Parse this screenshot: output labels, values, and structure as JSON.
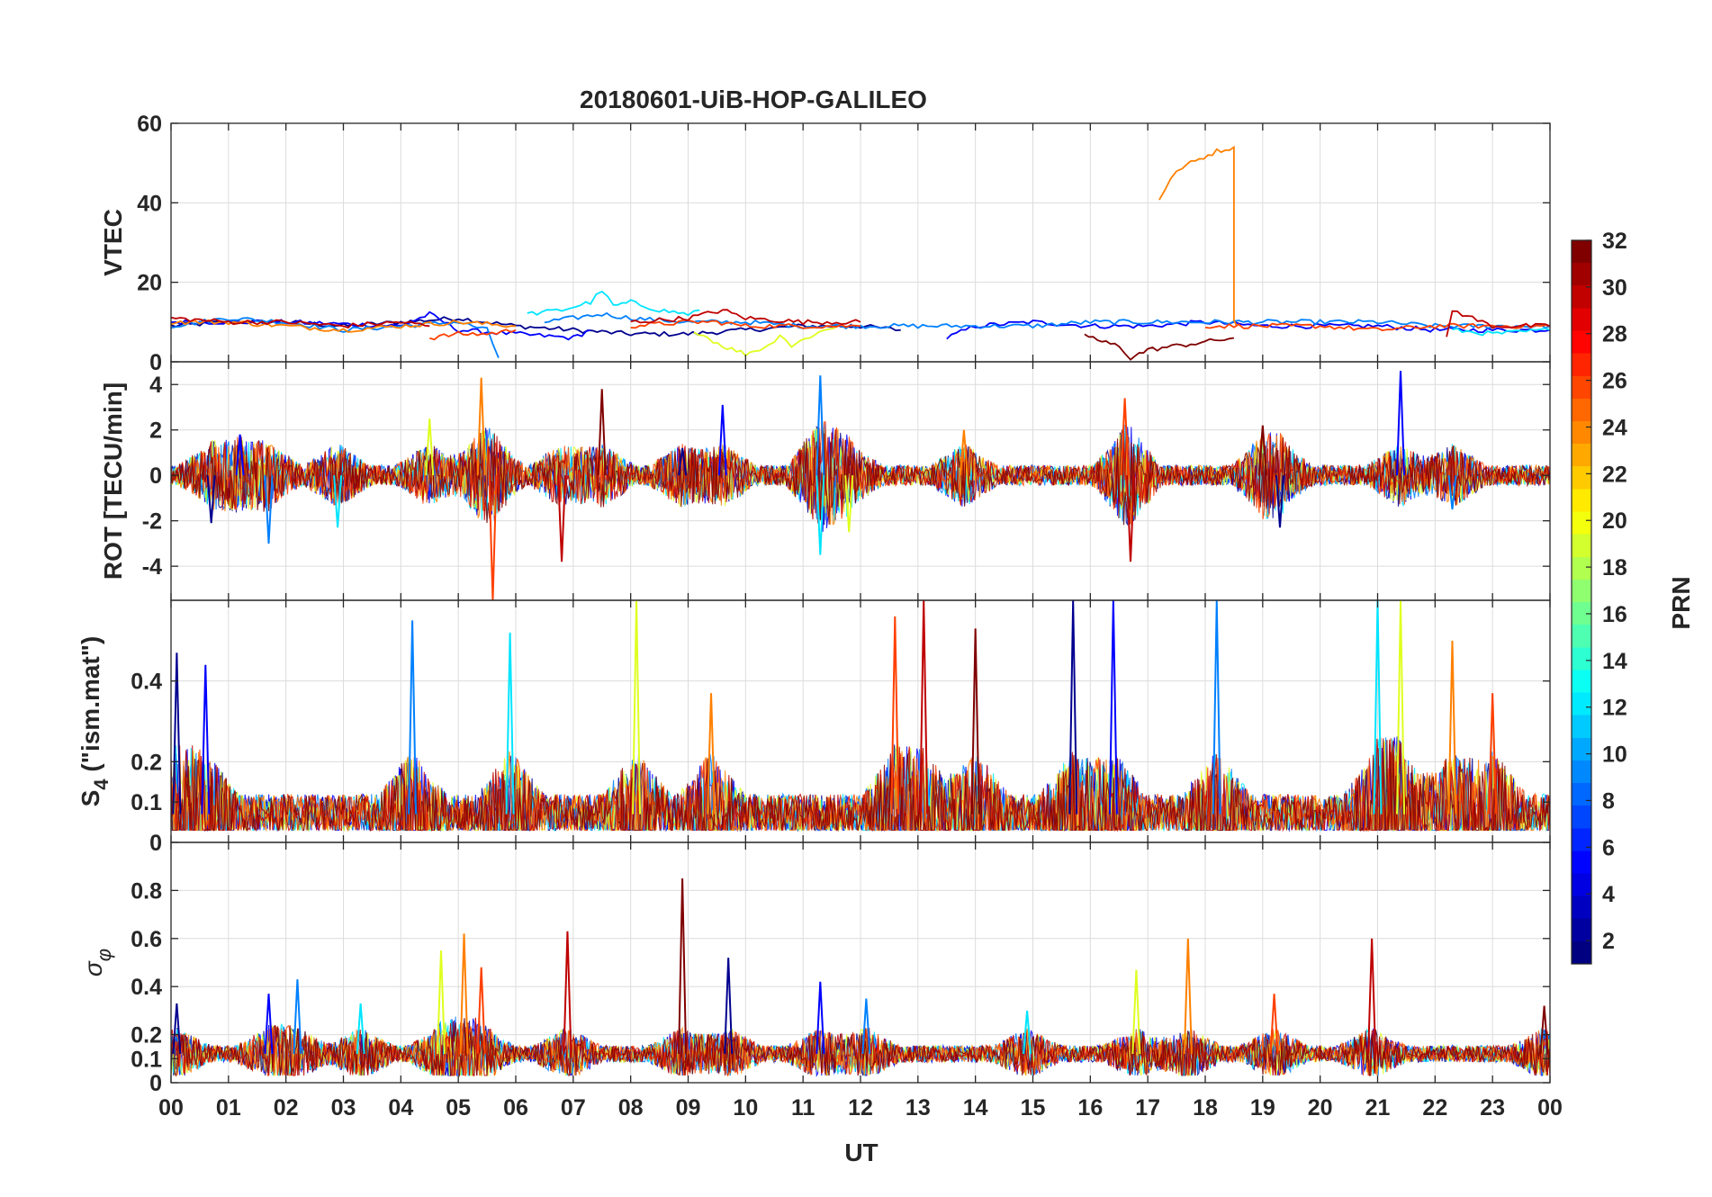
{
  "chart_data": {
    "type": "line",
    "title": "20180601-UiB-HOP-GALILEO",
    "xlabel": "UT",
    "x_ticks": [
      "00",
      "01",
      "02",
      "03",
      "04",
      "05",
      "06",
      "07",
      "08",
      "09",
      "10",
      "11",
      "12",
      "13",
      "14",
      "15",
      "16",
      "17",
      "18",
      "19",
      "20",
      "21",
      "22",
      "23",
      "00"
    ],
    "xlim": [
      0,
      24
    ],
    "panels": [
      {
        "id": "vtec",
        "ylabel": "VTEC",
        "ylim": [
          0,
          60
        ],
        "yticks": [
          0,
          20,
          40,
          60
        ],
        "ytick_labels": [
          "0",
          "20",
          "40",
          "60"
        ]
      },
      {
        "id": "rot",
        "ylabel": "ROT [TECU/min]",
        "ylim": [
          -5.5,
          5
        ],
        "yticks": [
          -4,
          -2,
          0,
          2,
          4
        ],
        "ytick_labels": [
          "-4",
          "-2",
          "0",
          "2",
          "4"
        ]
      },
      {
        "id": "s4",
        "ylabel_main": "S",
        "ylabel_sub": "4",
        "ylabel_rest": " (\"ism.mat\")",
        "ylim": [
          0,
          0.6
        ],
        "yticks": [
          0,
          0.1,
          0.2,
          0.4
        ],
        "ytick_labels": [
          "0",
          "0.1",
          "0.2",
          "0.4"
        ]
      },
      {
        "id": "sigma",
        "ylabel_main": "σ",
        "ylabel_sub": "φ",
        "ylim": [
          0,
          1
        ],
        "yticks": [
          0,
          0.1,
          0.2,
          0.4,
          0.6,
          0.8
        ],
        "ytick_labels": [
          "0",
          "0.1",
          "0.2",
          "0.4",
          "0.6",
          "0.8"
        ]
      }
    ],
    "colorbar": {
      "label": "PRN",
      "range": [
        1,
        32
      ],
      "tick_labels": [
        "2",
        "4",
        "6",
        "8",
        "10",
        "12",
        "14",
        "16",
        "18",
        "20",
        "22",
        "24",
        "26",
        "28",
        "30",
        "32"
      ],
      "colormap": "jet"
    },
    "series": [
      {
        "prn": 1,
        "color": "#00008F",
        "vtec_segments": [
          {
            "x": [
              0,
              1,
              2,
              3,
              4,
              5,
              6,
              7,
              8,
              9,
              10,
              11,
              12,
              12.7
            ],
            "y": [
              9,
              10,
              10,
              9,
              10,
              11,
              9,
              8,
              7,
              7,
              8,
              9,
              9,
              8
            ]
          }
        ]
      },
      {
        "prn": 4,
        "color": "#0000FF",
        "vtec_segments": [
          {
            "x": [
              0,
              2,
              4,
              4.5,
              5,
              6,
              7,
              7.3
            ],
            "y": [
              10,
              10,
              9,
              12,
              8,
              7,
              6,
              8
            ]
          },
          {
            "x": [
              13.5,
              14,
              15,
              16,
              17,
              18,
              19,
              20,
              21,
              22,
              23,
              24
            ],
            "y": [
              6,
              9,
              10,
              9,
              9,
              10,
              9,
              9,
              9,
              8,
              8,
              8
            ]
          }
        ]
      },
      {
        "prn": 8,
        "color": "#0080FF",
        "vtec_segments": [
          {
            "x": [
              0,
              1,
              2,
              3,
              4,
              5,
              5.5,
              5.7
            ],
            "y": [
              9,
              11,
              10,
              8,
              9,
              10,
              8,
              1
            ]
          },
          {
            "x": [
              6.5,
              7,
              7.5,
              8,
              9,
              10,
              11,
              12,
              13,
              14,
              15,
              16,
              17,
              18,
              19,
              20,
              21,
              22,
              23,
              24
            ],
            "y": [
              10,
              11,
              12,
              11,
              10,
              10,
              9,
              9,
              9,
              9,
              9,
              10,
              10,
              10,
              10,
              10,
              10,
              9,
              9,
              9
            ]
          }
        ]
      },
      {
        "prn": 12,
        "color": "#00E5FF",
        "vtec_segments": [
          {
            "x": [
              6.2,
              6.8,
              7.3,
              7.5,
              7.7,
              8,
              8.5,
              9,
              9.2
            ],
            "y": [
              12,
              13,
              15,
              18,
              14,
              15,
              13,
              12,
              13
            ]
          },
          {
            "x": [
              22.3,
              23,
              24
            ],
            "y": [
              8,
              7,
              8
            ]
          }
        ]
      },
      {
        "prn": 20,
        "color": "#DFFF1F",
        "vtec_segments": [
          {
            "x": [
              9.1,
              9.6,
              10,
              10.4,
              10.6,
              10.8,
              11.2,
              11.6
            ],
            "y": [
              8,
              4,
              2,
              4,
              7,
              4,
              7,
              9
            ]
          }
        ]
      },
      {
        "prn": 24,
        "color": "#FF8000",
        "vtec_segments": [
          {
            "x": [
              17.2,
              17.4,
              17.6,
              17.9,
              18.2,
              18.5,
              18.5,
              18.55
            ],
            "y": [
              41,
              46,
              49,
              51,
              53,
              54,
              10,
              9
            ]
          },
          {
            "x": [
              0,
              1,
              2,
              3,
              4,
              5,
              6
            ],
            "y": [
              10,
              10,
              9,
              8,
              9,
              10,
              9
            ]
          }
        ]
      },
      {
        "prn": 26,
        "color": "#FF4000",
        "vtec_segments": [
          {
            "x": [
              4.5,
              5,
              5.5,
              6
            ],
            "y": [
              6,
              7,
              7,
              8
            ]
          },
          {
            "x": [
              8,
              9,
              9.5,
              10,
              11,
              12
            ],
            "y": [
              9,
              10,
              10,
              9,
              9,
              9
            ]
          },
          {
            "x": [
              18,
              19,
              20,
              21,
              22,
              23,
              24
            ],
            "y": [
              9,
              9,
              9,
              8,
              9,
              9,
              9
            ]
          }
        ]
      },
      {
        "prn": 30,
        "color": "#BF0000",
        "vtec_segments": [
          {
            "x": [
              0,
              1,
              2,
              3,
              4,
              4.5
            ],
            "y": [
              11,
              10,
              10,
              9,
              10,
              9
            ]
          },
          {
            "x": [
              8,
              9,
              9.6,
              10,
              11,
              12
            ],
            "y": [
              10,
              11,
              13,
              11,
              10,
              10
            ]
          },
          {
            "x": [
              22.2,
              22.3,
              23,
              24
            ],
            "y": [
              6,
              13,
              9,
              9
            ]
          }
        ]
      },
      {
        "prn": 32,
        "color": "#800000",
        "vtec_segments": [
          {
            "x": [
              15.9,
              16.2,
              16.5,
              16.7,
              17,
              17.5,
              18,
              18.5
            ],
            "y": [
              7,
              5,
              4,
              1,
              3,
              4,
              5,
              6
            ]
          }
        ]
      }
    ],
    "panel_activity": {
      "rot_spikes": [
        {
          "t": 0.7,
          "v": -2.1
        },
        {
          "t": 1.2,
          "v": 1.8
        },
        {
          "t": 1.7,
          "v": -3
        },
        {
          "t": 2.9,
          "v": -2.3
        },
        {
          "t": 4.5,
          "v": 2.5
        },
        {
          "t": 5.4,
          "v": 4.3
        },
        {
          "t": 5.6,
          "v": -5.5
        },
        {
          "t": 6.8,
          "v": -3.8
        },
        {
          "t": 7.5,
          "v": 3.8
        },
        {
          "t": 8.9,
          "v": 1.2
        },
        {
          "t": 9.6,
          "v": 3.1
        },
        {
          "t": 11.3,
          "v": 4.4
        },
        {
          "t": 11.3,
          "v": -3.5
        },
        {
          "t": 11.8,
          "v": -2.5
        },
        {
          "t": 13.8,
          "v": 2
        },
        {
          "t": 16.6,
          "v": 3.4
        },
        {
          "t": 16.7,
          "v": -3.8
        },
        {
          "t": 19,
          "v": 2.2
        },
        {
          "t": 19.3,
          "v": -2.3
        },
        {
          "t": 21.4,
          "v": 4.6
        },
        {
          "t": 22.3,
          "v": -1.5
        }
      ],
      "s4_peaks": [
        {
          "t": 0.1,
          "v": 0.47
        },
        {
          "t": 0.6,
          "v": 0.44
        },
        {
          "t": 4.2,
          "v": 0.55
        },
        {
          "t": 5.9,
          "v": 0.52
        },
        {
          "t": 8.1,
          "v": 0.6
        },
        {
          "t": 9.4,
          "v": 0.37
        },
        {
          "t": 12.6,
          "v": 0.56
        },
        {
          "t": 13.1,
          "v": 0.6
        },
        {
          "t": 14,
          "v": 0.53
        },
        {
          "t": 15.7,
          "v": 0.6
        },
        {
          "t": 16.4,
          "v": 0.6
        },
        {
          "t": 18.2,
          "v": 0.6
        },
        {
          "t": 21,
          "v": 0.6
        },
        {
          "t": 21.4,
          "v": 0.6
        },
        {
          "t": 22.3,
          "v": 0.5
        },
        {
          "t": 23,
          "v": 0.37
        }
      ],
      "sigma_peaks": [
        {
          "t": 0.1,
          "v": 0.33
        },
        {
          "t": 1.7,
          "v": 0.37
        },
        {
          "t": 2.2,
          "v": 0.43
        },
        {
          "t": 3.3,
          "v": 0.33
        },
        {
          "t": 4.7,
          "v": 0.55
        },
        {
          "t": 5.1,
          "v": 0.62
        },
        {
          "t": 5.4,
          "v": 0.48
        },
        {
          "t": 6.9,
          "v": 0.63
        },
        {
          "t": 8.9,
          "v": 0.85
        },
        {
          "t": 9.7,
          "v": 0.52
        },
        {
          "t": 11.3,
          "v": 0.42
        },
        {
          "t": 12.1,
          "v": 0.35
        },
        {
          "t": 14.9,
          "v": 0.3
        },
        {
          "t": 16.8,
          "v": 0.47
        },
        {
          "t": 17.7,
          "v": 0.6
        },
        {
          "t": 19.2,
          "v": 0.37
        },
        {
          "t": 20.9,
          "v": 0.6
        },
        {
          "t": 23.9,
          "v": 0.32
        }
      ]
    }
  }
}
